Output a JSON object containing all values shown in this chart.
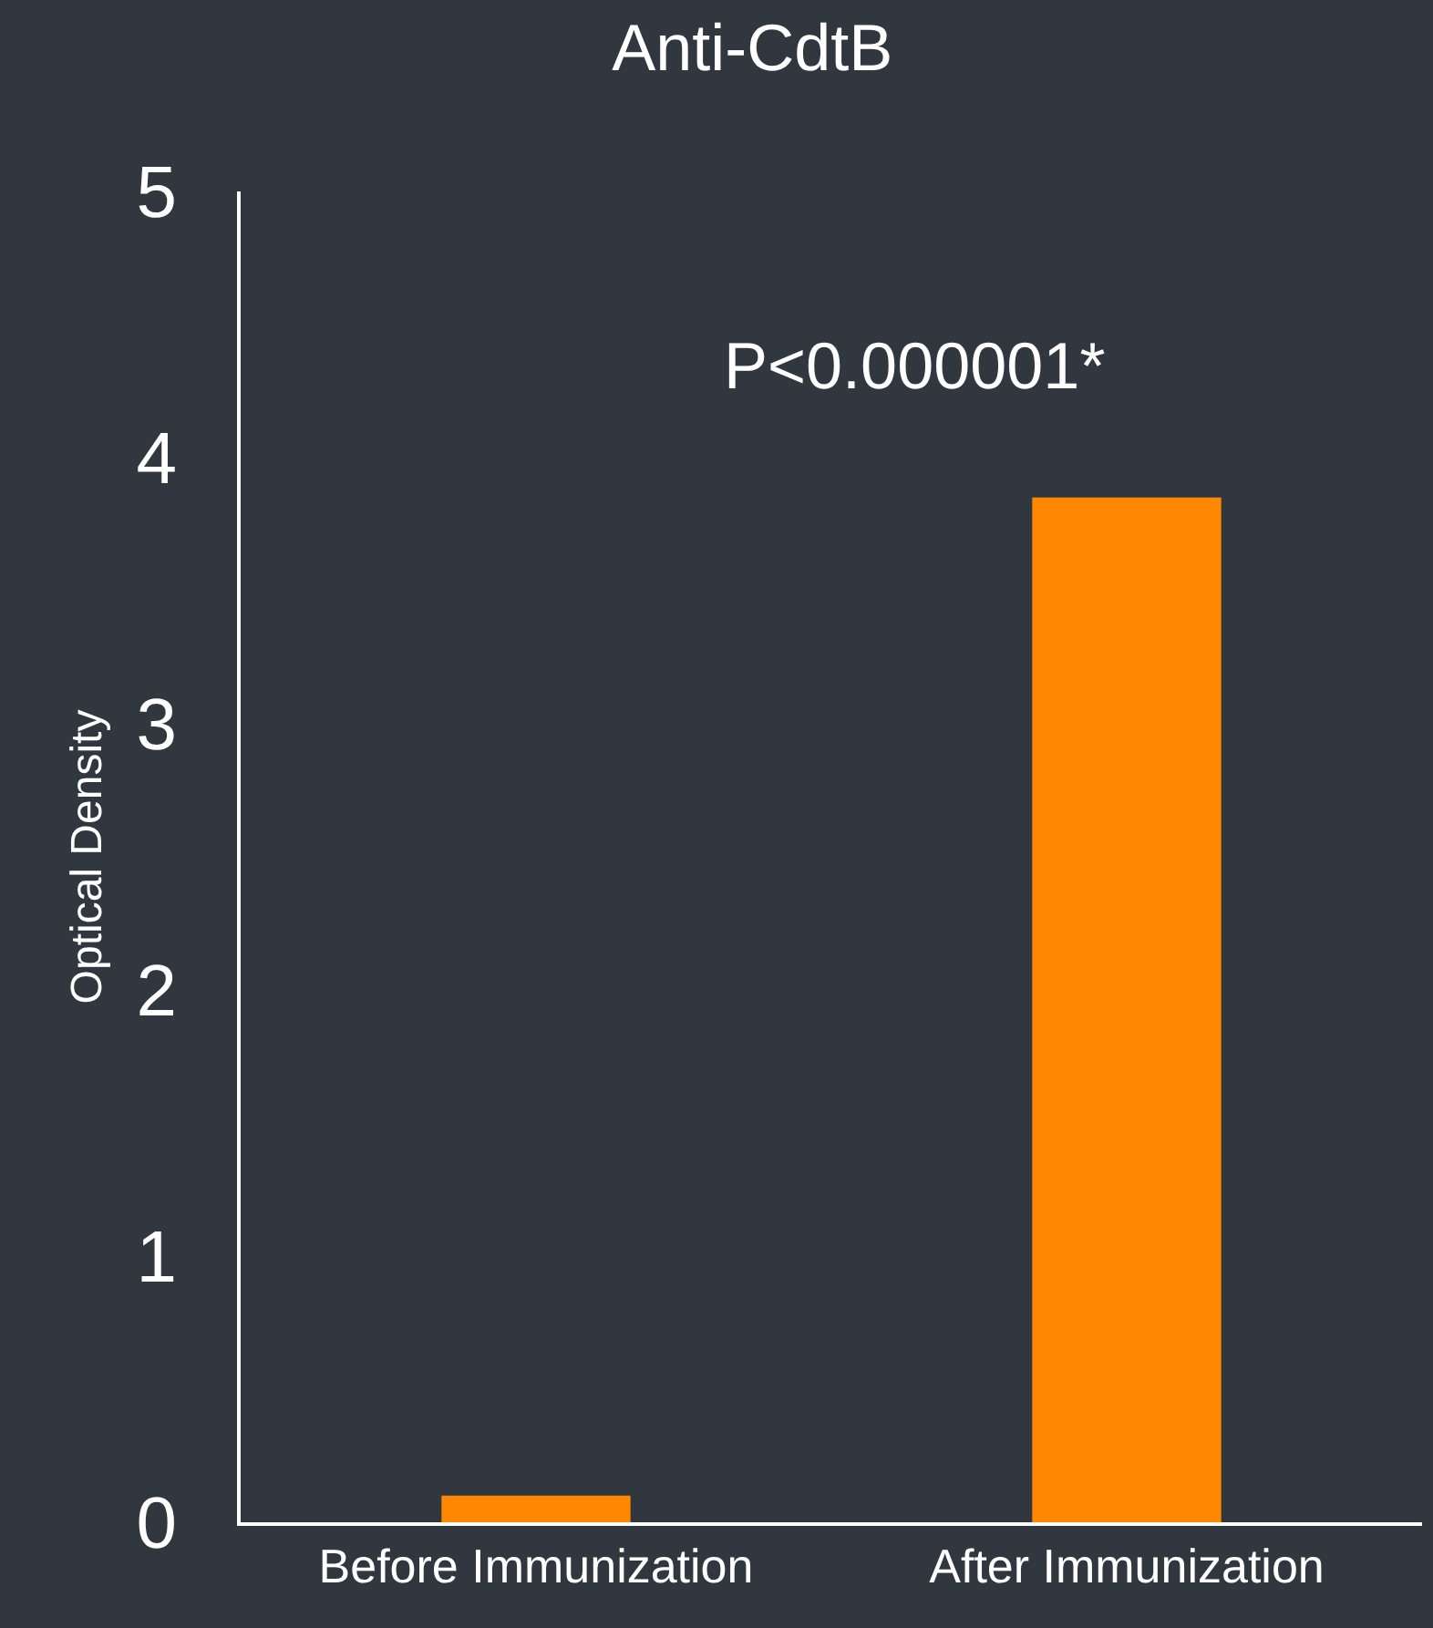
{
  "chart_data": {
    "type": "bar",
    "title": "Anti-CdtB",
    "ylabel": "Optical Density",
    "categories": [
      "Before Immunization",
      "After Immunization"
    ],
    "values": [
      0.1,
      3.85
    ],
    "color": "#ff8800",
    "ylim": [
      0,
      5
    ],
    "yticks": [
      0,
      1,
      2,
      3,
      4,
      5
    ],
    "grid": false,
    "annotations": [
      "P<0.000001*"
    ]
  }
}
